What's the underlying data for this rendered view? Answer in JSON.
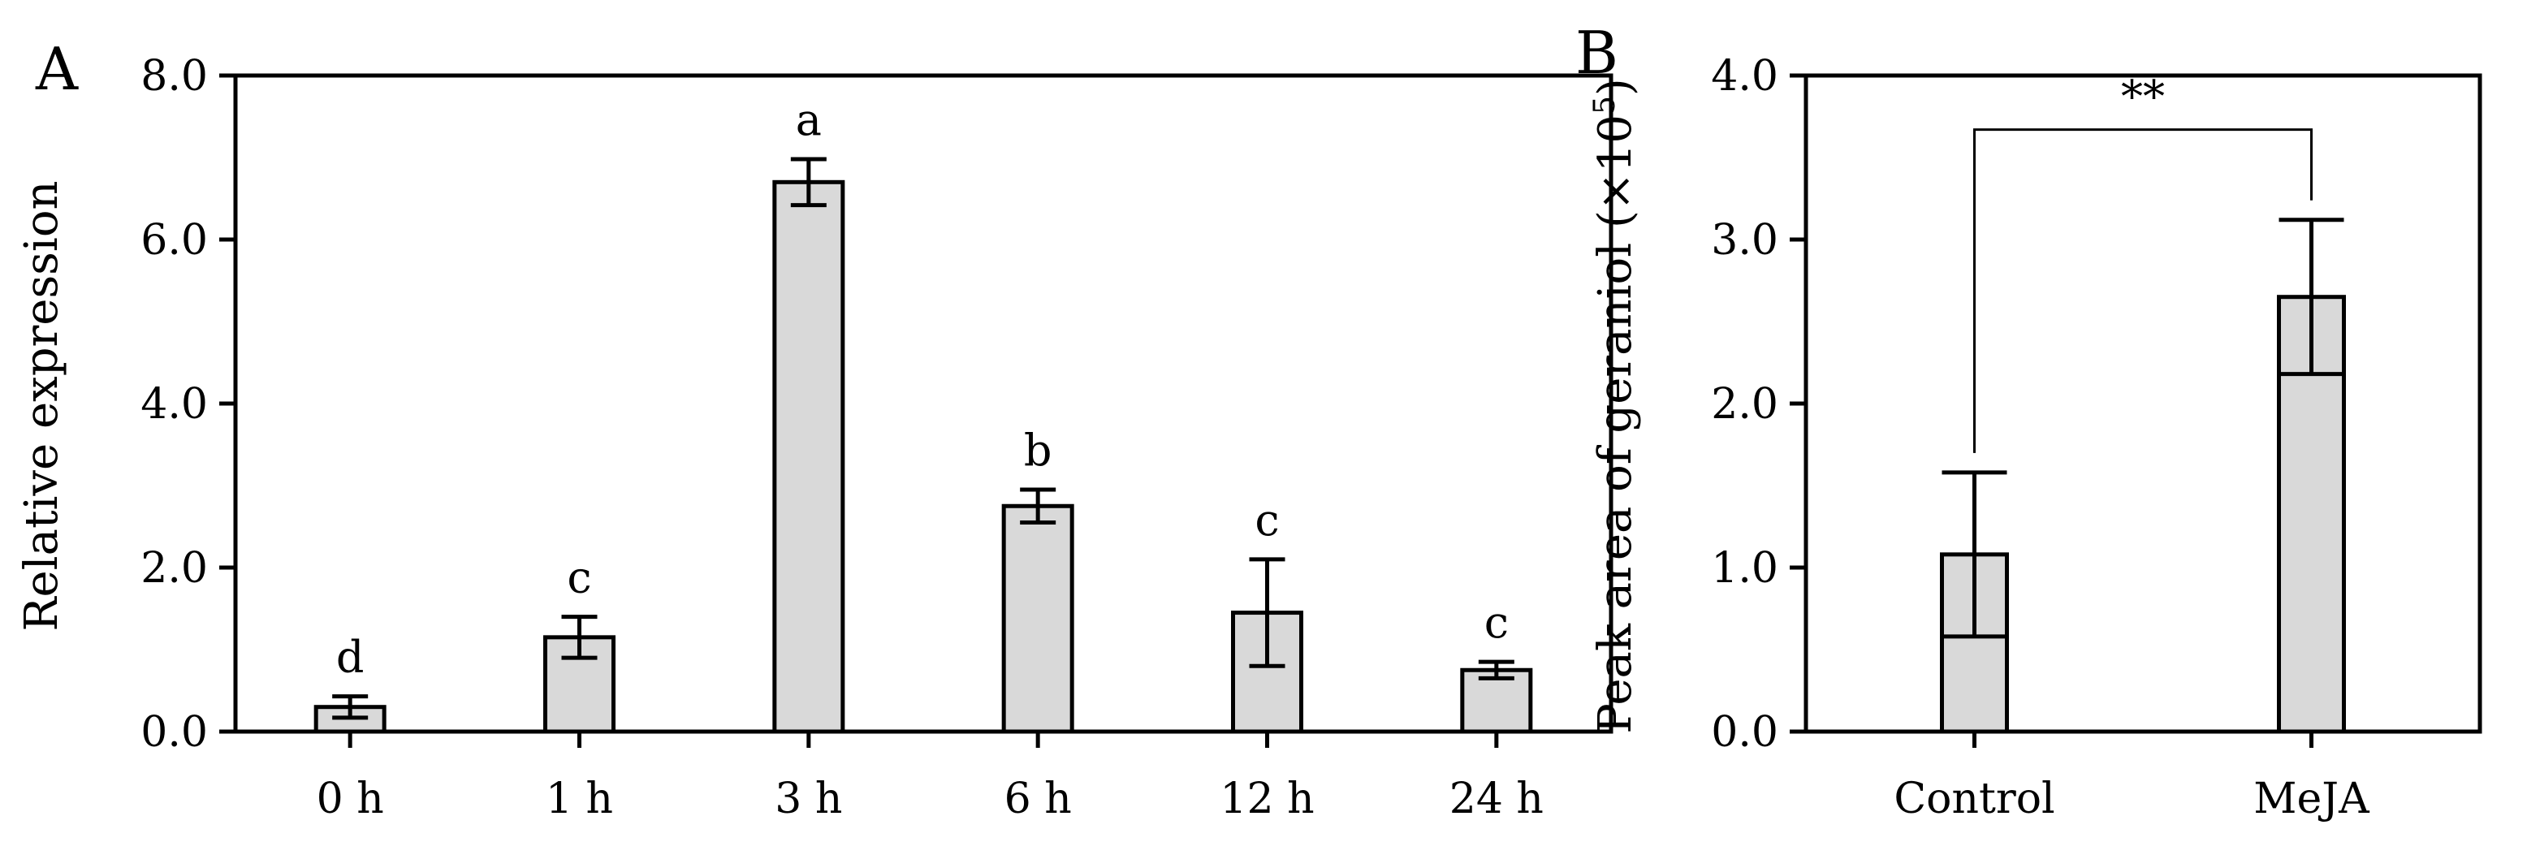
{
  "panel_labels": {
    "a": "A",
    "b": "B"
  },
  "chart_data": [
    {
      "type": "bar",
      "panel": "A",
      "title": "",
      "xlabel": "",
      "ylabel": "Relative expression",
      "ylim": [
        0,
        8
      ],
      "yticks": [
        0,
        2,
        4,
        6,
        8
      ],
      "ytick_labels": [
        "0.0",
        "2.0",
        "4.0",
        "6.0",
        "8.0"
      ],
      "categories": [
        "0 h",
        "1 h",
        "3 h",
        "6 h",
        "12 h",
        "24 h"
      ],
      "values": [
        0.3,
        1.15,
        6.7,
        2.75,
        1.45,
        0.75
      ],
      "errors": [
        0.13,
        0.25,
        0.28,
        0.2,
        0.65,
        0.1
      ],
      "significance": [
        "d",
        "c",
        "a",
        "b",
        "c",
        "c"
      ],
      "bar_color": "#d9d9d9",
      "grid": false,
      "legend": "none"
    },
    {
      "type": "bar",
      "panel": "B",
      "title": "",
      "xlabel": "",
      "ylabel_main": "Peak area of geraniol (×10",
      "ylabel_sup": "5",
      "ylabel_close": ")",
      "ylim": [
        0,
        4
      ],
      "yticks": [
        0,
        1,
        2,
        3,
        4
      ],
      "ytick_labels": [
        "0.0",
        "1.0",
        "2.0",
        "3.0",
        "4.0"
      ],
      "categories": [
        "Control",
        "MeJA"
      ],
      "values": [
        1.08,
        2.65
      ],
      "errors": [
        0.5,
        0.47
      ],
      "comparison_label": "**",
      "bar_color": "#d9d9d9",
      "grid": false,
      "legend": "none"
    }
  ]
}
